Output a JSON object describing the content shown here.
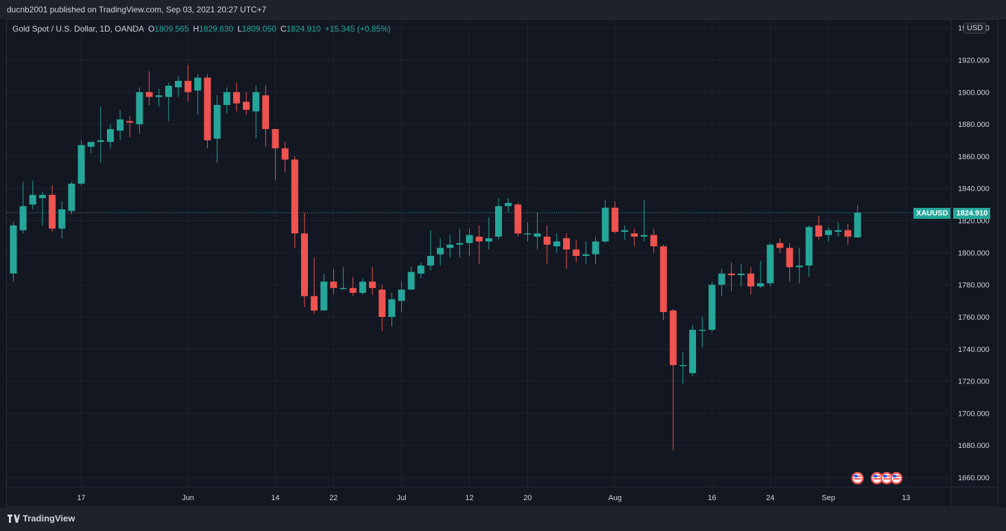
{
  "header": {
    "publisher_text": "ducnb2001 published on TradingView.com, Sep 03, 2021 20:27 UTC+7"
  },
  "legend": {
    "symbol_text": "Gold Spot / U.S. Dollar, 1D, OANDA",
    "open_label": "O",
    "open_value": "1809.565",
    "high_label": "H",
    "high_value": "1829.630",
    "low_label": "L",
    "low_value": "1809.050",
    "close_label": "C",
    "close_value": "1824.910",
    "change_value": "+15.345 (+0.85%)"
  },
  "price_scale": {
    "currency": "USD",
    "symbol_tag": "XAUUSD",
    "last_price": "1824.910"
  },
  "footer": {
    "brand": "TradingView"
  },
  "colors": {
    "background": "#131722",
    "up": "#26a69a",
    "down": "#ef5350",
    "grid": "#1f2430",
    "text": "#d1d4dc"
  },
  "chart_data": {
    "type": "candlestick",
    "symbol": "XAUUSD",
    "interval": "1D",
    "ylim": [
      1655,
      1945
    ],
    "y_ticks": [
      "1660.000",
      "1680.000",
      "1700.000",
      "1720.000",
      "1740.000",
      "1760.000",
      "1780.000",
      "1800.000",
      "1820.000",
      "1840.000",
      "1860.000",
      "1880.000",
      "1900.000",
      "1920.000",
      "1940.000"
    ],
    "y_tick_values": [
      1660,
      1680,
      1700,
      1720,
      1740,
      1760,
      1780,
      1800,
      1820,
      1840,
      1860,
      1880,
      1900,
      1920,
      1940
    ],
    "x_ticks": [
      {
        "label": "17",
        "index": 7
      },
      {
        "label": "Jun",
        "index": 18
      },
      {
        "label": "14",
        "index": 27
      },
      {
        "label": "22",
        "index": 33
      },
      {
        "label": "Jul",
        "index": 40
      },
      {
        "label": "12",
        "index": 47
      },
      {
        "label": "20",
        "index": 53
      },
      {
        "label": "Aug",
        "index": 62
      },
      {
        "label": "16",
        "index": 72
      },
      {
        "label": "24",
        "index": 78
      },
      {
        "label": "Sep",
        "index": 84
      },
      {
        "label": "13",
        "index": 92
      }
    ],
    "last_price_line": 1824.91,
    "event_markers": [
      87,
      89,
      90,
      91
    ],
    "candles": [
      {
        "o": 1787,
        "h": 1819,
        "l": 1782,
        "c": 1817
      },
      {
        "o": 1814,
        "h": 1844,
        "l": 1812,
        "c": 1829
      },
      {
        "o": 1830,
        "h": 1845,
        "l": 1827,
        "c": 1836
      },
      {
        "o": 1834,
        "h": 1838,
        "l": 1817,
        "c": 1836
      },
      {
        "o": 1836,
        "h": 1842,
        "l": 1813,
        "c": 1815
      },
      {
        "o": 1815,
        "h": 1832,
        "l": 1809,
        "c": 1827
      },
      {
        "o": 1826,
        "h": 1844,
        "l": 1824,
        "c": 1843
      },
      {
        "o": 1843,
        "h": 1870,
        "l": 1842,
        "c": 1867
      },
      {
        "o": 1866,
        "h": 1868,
        "l": 1862,
        "c": 1869
      },
      {
        "o": 1869,
        "h": 1891,
        "l": 1856,
        "c": 1870
      },
      {
        "o": 1869,
        "h": 1880,
        "l": 1865,
        "c": 1877
      },
      {
        "o": 1876,
        "h": 1889,
        "l": 1870,
        "c": 1883
      },
      {
        "o": 1882,
        "h": 1885,
        "l": 1872,
        "c": 1881
      },
      {
        "o": 1880,
        "h": 1903,
        "l": 1874,
        "c": 1900
      },
      {
        "o": 1900,
        "h": 1913,
        "l": 1892,
        "c": 1897
      },
      {
        "o": 1897,
        "h": 1902,
        "l": 1891,
        "c": 1898
      },
      {
        "o": 1897,
        "h": 1906,
        "l": 1882,
        "c": 1904
      },
      {
        "o": 1903,
        "h": 1910,
        "l": 1897,
        "c": 1907
      },
      {
        "o": 1907,
        "h": 1917,
        "l": 1894,
        "c": 1900
      },
      {
        "o": 1901,
        "h": 1911,
        "l": 1886,
        "c": 1909
      },
      {
        "o": 1909,
        "h": 1911,
        "l": 1865,
        "c": 1870
      },
      {
        "o": 1871,
        "h": 1898,
        "l": 1856,
        "c": 1892
      },
      {
        "o": 1892,
        "h": 1903,
        "l": 1887,
        "c": 1900
      },
      {
        "o": 1900,
        "h": 1906,
        "l": 1888,
        "c": 1893
      },
      {
        "o": 1894,
        "h": 1900,
        "l": 1886,
        "c": 1889
      },
      {
        "o": 1888,
        "h": 1904,
        "l": 1871,
        "c": 1900
      },
      {
        "o": 1898,
        "h": 1904,
        "l": 1866,
        "c": 1877
      },
      {
        "o": 1877,
        "h": 1877,
        "l": 1845,
        "c": 1865
      },
      {
        "o": 1865,
        "h": 1869,
        "l": 1850,
        "c": 1858
      },
      {
        "o": 1858,
        "h": 1860,
        "l": 1803,
        "c": 1812
      },
      {
        "o": 1812,
        "h": 1825,
        "l": 1766,
        "c": 1773
      },
      {
        "o": 1773,
        "h": 1797,
        "l": 1762,
        "c": 1764
      },
      {
        "o": 1764,
        "h": 1787,
        "l": 1764,
        "c": 1782
      },
      {
        "o": 1782,
        "h": 1790,
        "l": 1774,
        "c": 1778
      },
      {
        "o": 1778,
        "h": 1791,
        "l": 1777,
        "c": 1778
      },
      {
        "o": 1778,
        "h": 1785,
        "l": 1773,
        "c": 1775
      },
      {
        "o": 1775,
        "h": 1784,
        "l": 1774,
        "c": 1782
      },
      {
        "o": 1782,
        "h": 1791,
        "l": 1774,
        "c": 1778
      },
      {
        "o": 1777,
        "h": 1780,
        "l": 1751,
        "c": 1760
      },
      {
        "o": 1760,
        "h": 1775,
        "l": 1754,
        "c": 1771
      },
      {
        "o": 1770,
        "h": 1782,
        "l": 1763,
        "c": 1777
      },
      {
        "o": 1777,
        "h": 1791,
        "l": 1777,
        "c": 1788
      },
      {
        "o": 1787,
        "h": 1794,
        "l": 1784,
        "c": 1792
      },
      {
        "o": 1792,
        "h": 1814,
        "l": 1789,
        "c": 1798
      },
      {
        "o": 1799,
        "h": 1809,
        "l": 1792,
        "c": 1803
      },
      {
        "o": 1803,
        "h": 1811,
        "l": 1797,
        "c": 1805
      },
      {
        "o": 1805,
        "h": 1815,
        "l": 1797,
        "c": 1806
      },
      {
        "o": 1806,
        "h": 1815,
        "l": 1798,
        "c": 1811
      },
      {
        "o": 1810,
        "h": 1817,
        "l": 1793,
        "c": 1807
      },
      {
        "o": 1807,
        "h": 1822,
        "l": 1802,
        "c": 1809
      },
      {
        "o": 1810,
        "h": 1834,
        "l": 1808,
        "c": 1829
      },
      {
        "o": 1829,
        "h": 1834,
        "l": 1825,
        "c": 1831
      },
      {
        "o": 1830,
        "h": 1831,
        "l": 1810,
        "c": 1812
      },
      {
        "o": 1812,
        "h": 1819,
        "l": 1807,
        "c": 1812
      },
      {
        "o": 1810,
        "h": 1825,
        "l": 1802,
        "c": 1812
      },
      {
        "o": 1810,
        "h": 1817,
        "l": 1793,
        "c": 1805
      },
      {
        "o": 1804,
        "h": 1812,
        "l": 1800,
        "c": 1807
      },
      {
        "o": 1809,
        "h": 1812,
        "l": 1790,
        "c": 1802
      },
      {
        "o": 1802,
        "h": 1808,
        "l": 1794,
        "c": 1798
      },
      {
        "o": 1798,
        "h": 1807,
        "l": 1793,
        "c": 1799
      },
      {
        "o": 1799,
        "h": 1810,
        "l": 1793,
        "c": 1807
      },
      {
        "o": 1807,
        "h": 1833,
        "l": 1806,
        "c": 1828
      },
      {
        "o": 1828,
        "h": 1832,
        "l": 1812,
        "c": 1813
      },
      {
        "o": 1813,
        "h": 1817,
        "l": 1808,
        "c": 1814
      },
      {
        "o": 1812,
        "h": 1815,
        "l": 1804,
        "c": 1810
      },
      {
        "o": 1810,
        "h": 1833,
        "l": 1807,
        "c": 1811
      },
      {
        "o": 1811,
        "h": 1815,
        "l": 1800,
        "c": 1804
      },
      {
        "o": 1804,
        "h": 1805,
        "l": 1758,
        "c": 1763
      },
      {
        "o": 1764,
        "h": 1765,
        "l": 1677,
        "c": 1730
      },
      {
        "o": 1730,
        "h": 1738,
        "l": 1718,
        "c": 1730
      },
      {
        "o": 1725,
        "h": 1755,
        "l": 1723,
        "c": 1752
      },
      {
        "o": 1752,
        "h": 1760,
        "l": 1741,
        "c": 1752
      },
      {
        "o": 1752,
        "h": 1782,
        "l": 1751,
        "c": 1780
      },
      {
        "o": 1780,
        "h": 1790,
        "l": 1773,
        "c": 1787
      },
      {
        "o": 1787,
        "h": 1794,
        "l": 1776,
        "c": 1786
      },
      {
        "o": 1786,
        "h": 1793,
        "l": 1779,
        "c": 1787
      },
      {
        "o": 1787,
        "h": 1791,
        "l": 1774,
        "c": 1779
      },
      {
        "o": 1779,
        "h": 1795,
        "l": 1778,
        "c": 1781
      },
      {
        "o": 1781,
        "h": 1806,
        "l": 1779,
        "c": 1805
      },
      {
        "o": 1806,
        "h": 1809,
        "l": 1800,
        "c": 1803
      },
      {
        "o": 1803,
        "h": 1806,
        "l": 1782,
        "c": 1791
      },
      {
        "o": 1791,
        "h": 1803,
        "l": 1781,
        "c": 1792
      },
      {
        "o": 1792,
        "h": 1817,
        "l": 1785,
        "c": 1816
      },
      {
        "o": 1817,
        "h": 1823,
        "l": 1808,
        "c": 1810
      },
      {
        "o": 1811,
        "h": 1816,
        "l": 1807,
        "c": 1814
      },
      {
        "o": 1813,
        "h": 1819,
        "l": 1810,
        "c": 1814
      },
      {
        "o": 1814,
        "h": 1818,
        "l": 1805,
        "c": 1810
      },
      {
        "o": 1809.565,
        "h": 1829.63,
        "l": 1809.05,
        "c": 1824.91
      }
    ]
  }
}
